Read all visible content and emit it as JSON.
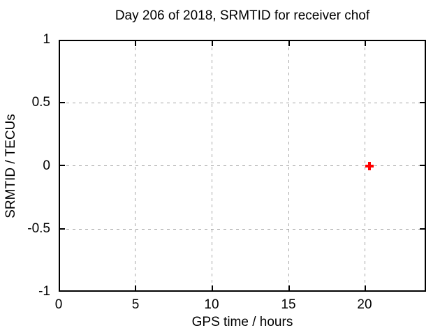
{
  "title": "Day 206 of 2018, SRMTID for receiver chof",
  "colors": {
    "background": "#ffffff",
    "axis": "#000000",
    "grid": "#a6a6a6",
    "text": "#000000",
    "marker": "#ff0000"
  },
  "chart_data": {
    "type": "scatter",
    "title": "Day 206 of 2018, SRMTID for receiver chof",
    "xlabel": "GPS time / hours",
    "ylabel": "SRMTID / TECUs",
    "xlim": [
      0,
      24
    ],
    "ylim": [
      -1,
      1
    ],
    "xtick_labels": [
      "0",
      "5",
      "10",
      "15",
      "20"
    ],
    "xtick_values": [
      0,
      5,
      10,
      15,
      20
    ],
    "ytick_labels": [
      "1",
      "0.5",
      "0",
      "-0.5",
      "-1"
    ],
    "ytick_values": [
      1,
      0.5,
      0,
      -0.5,
      -1
    ],
    "grid": true,
    "grid_style": "dashed",
    "legend": false,
    "series": [
      {
        "name": "SRMTID",
        "marker": "plus",
        "color": "#ff0000",
        "points": [
          {
            "x": 20.35,
            "y": 0.0
          }
        ]
      }
    ]
  }
}
